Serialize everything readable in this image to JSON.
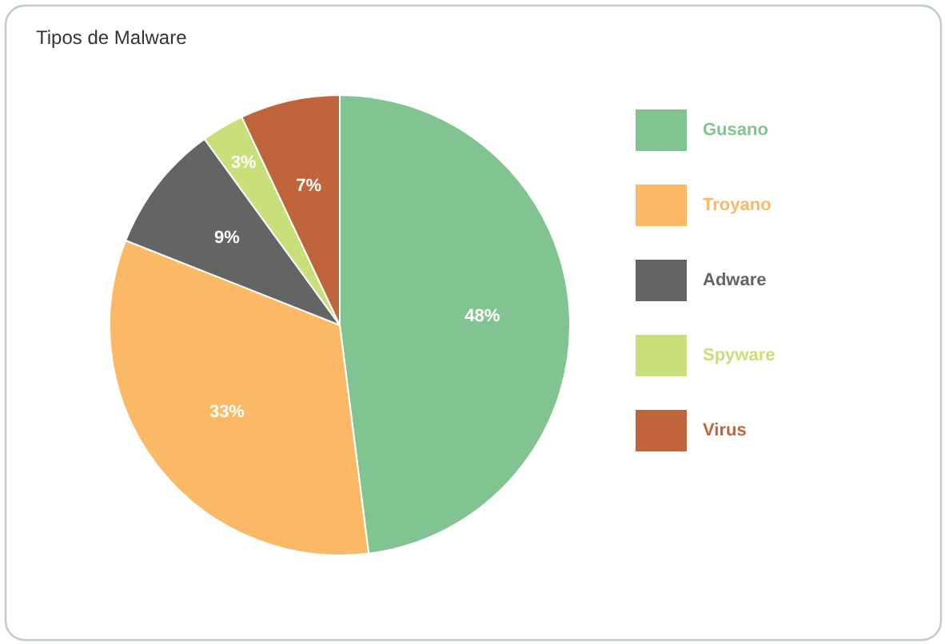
{
  "chart_data": {
    "type": "pie",
    "title": "Tipos de Malware",
    "categories": [
      "Gusano",
      "Troyano",
      "Adware",
      "Spyware",
      "Virus"
    ],
    "values": [
      48,
      33,
      9,
      3,
      7
    ],
    "colors": [
      "#82c491",
      "#fbb965",
      "#646464",
      "#c9e07a",
      "#c0643b"
    ],
    "value_labels": [
      "48%",
      "33%",
      "9%",
      "3%",
      "7%"
    ],
    "legend": "right"
  }
}
